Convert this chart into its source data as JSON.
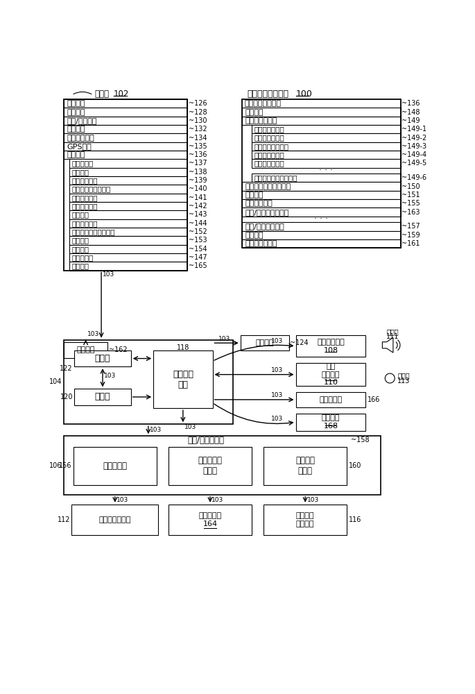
{
  "bg_color": "#ffffff",
  "storage_items": [
    [
      "操作系统",
      "126"
    ],
    [
      "通信模块",
      "128"
    ],
    [
      "接触/移动模块",
      "130"
    ],
    [
      "图形模块",
      "132"
    ],
    [
      "文本输入模块",
      "134"
    ],
    [
      "GPS模块",
      "135"
    ],
    [
      "应用程序",
      "136"
    ]
  ],
  "app_sub_items": [
    [
      "联系人模块",
      "137"
    ],
    [
      "电话模块",
      "138"
    ],
    [
      "视频会议模块",
      "139"
    ],
    [
      "电子邮件客户端模块",
      "140"
    ],
    [
      "即时消息模块",
      "141"
    ],
    [
      "锻炼支持模块",
      "142"
    ],
    [
      "相机模块",
      "143"
    ],
    [
      "图像管理模块",
      "144"
    ],
    [
      "视频和音乐播放器模块",
      "152"
    ],
    [
      "便笺模块",
      "153"
    ],
    [
      "地图模块",
      "154"
    ],
    [
      "浏览器模块",
      "147"
    ],
    [
      "通知模块",
      "165"
    ]
  ],
  "right_top_title": "应用程序（续前）",
  "right_top_ref": "136",
  "widget_items": [
    [
      "天气桌面小程序",
      "149-1"
    ],
    [
      "股市桌面小程序",
      "149-2"
    ],
    [
      "计算器桌面小程序",
      "149-3"
    ],
    [
      "闹钟桌面小程序",
      "149-4"
    ],
    [
      "字典桌面小程序",
      "149-5"
    ],
    [
      "用户创建的桌面小程序",
      "149-6"
    ]
  ],
  "right_items_level2": [
    [
      "桌面小程序创建器模块",
      "150"
    ],
    [
      "搜索模块",
      "151"
    ],
    [
      "在线视频模块",
      "155"
    ],
    [
      "声音/音频录制器模块",
      "163"
    ]
  ],
  "right_items_level3": [
    [
      "设备/全局内部状态",
      "157"
    ],
    [
      "相机胶卷",
      "159"
    ],
    [
      "数字图像流水线",
      "161"
    ]
  ]
}
